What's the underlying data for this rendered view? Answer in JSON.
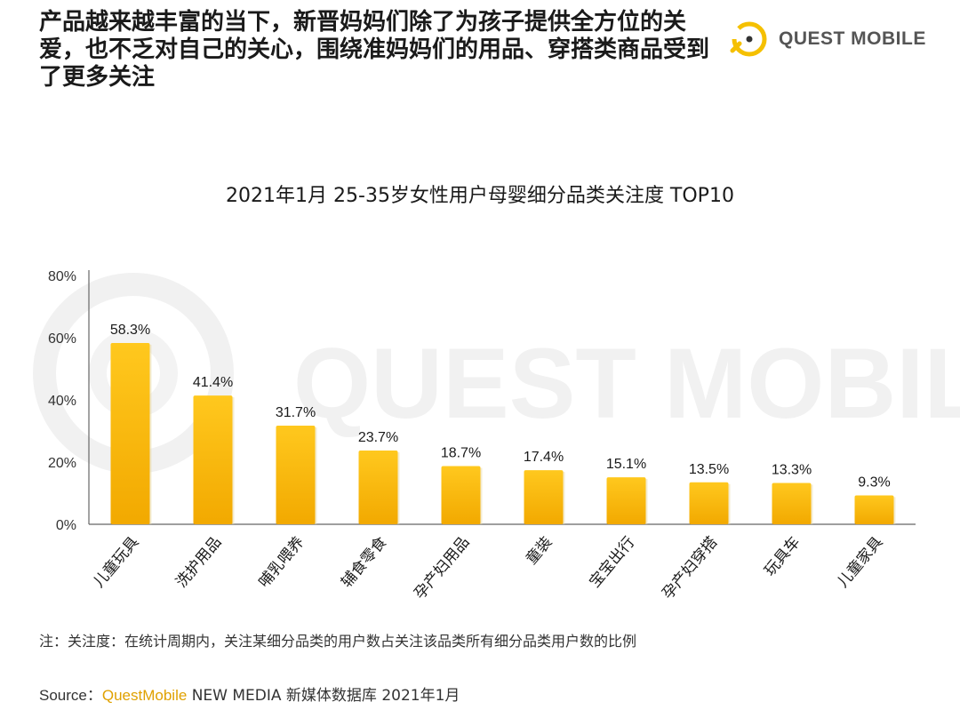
{
  "headline": "产品越来越丰富的当下，新晋妈妈们除了为孩子提供全方位的关爱，也不乏对自己的关心，围绕准妈妈们的用品、穿搭类商品受到了更多关注",
  "brand": {
    "name": "QUEST MOBILE",
    "logo_icon": "questmobile-logo-icon",
    "accent": "#F5C000"
  },
  "watermark": "QUEST MOBILE",
  "chart_data": {
    "type": "bar",
    "title": "2021年1月 25-35岁女性用户母婴细分品类关注度 TOP10",
    "categories": [
      "儿童玩具",
      "洗护用品",
      "哺乳喂养",
      "辅食零食",
      "孕产妇用品",
      "童装",
      "宝宝出行",
      "孕产妇穿搭",
      "玩具车",
      "儿童家具"
    ],
    "values": [
      58.3,
      41.4,
      31.7,
      23.7,
      18.7,
      17.4,
      15.1,
      13.5,
      13.3,
      9.3
    ],
    "value_labels": [
      "58.3%",
      "41.4%",
      "31.7%",
      "23.7%",
      "18.7%",
      "17.4%",
      "15.1%",
      "13.5%",
      "13.3%",
      "9.3%"
    ],
    "ylim": [
      0,
      80
    ],
    "yticks": [
      "0%",
      "20%",
      "40%",
      "60%",
      "80%"
    ],
    "ytick_values": [
      0,
      20,
      40,
      60,
      80
    ],
    "xlabel": "",
    "ylabel": "",
    "grid": false,
    "bar_color_top": "#FFC81E",
    "bar_color_bottom": "#F2A900"
  },
  "note": "注：关注度：在统计周期内，关注某细分品类的用户数占关注该品类所有细分品类用户数的比例",
  "source": {
    "label": "Source：",
    "brand": "QuestMobile",
    "text": " NEW MEDIA 新媒体数据库 2021年1月"
  }
}
